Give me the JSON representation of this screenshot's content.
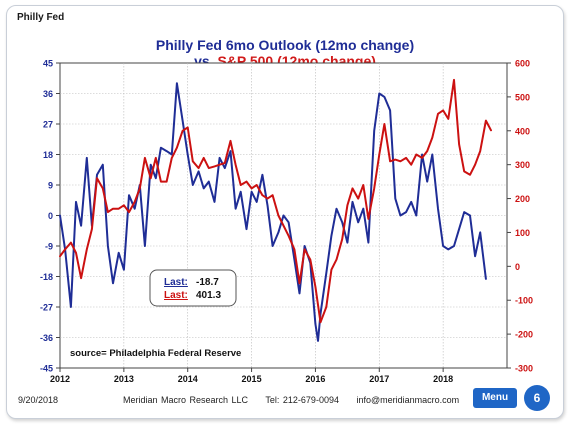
{
  "slide": {
    "tag": "Philly Fed",
    "date": "9/20/2018",
    "footer_company": "Meridian Macro Research LLC",
    "footer_tel": "Tel: 212-679-0094",
    "footer_email": "info@meridianmacro.com",
    "menu_label": "Menu",
    "page_number": "6",
    "accent_color": "#1f66c6"
  },
  "chart_data": {
    "type": "line",
    "title_line1": "Philly Fed 6mo Outlook (12mo change)",
    "title_line2_prefix": "vs.",
    "title_line2_series": "S&P 500 (12mo change)",
    "left_axis": {
      "ylim": [
        -45,
        45
      ],
      "ticks": [
        -45,
        -36,
        -27,
        -18,
        -9,
        0,
        9,
        18,
        27,
        36,
        45
      ],
      "tick_labels": [
        "-45",
        "-36",
        "-27",
        "-18",
        "-9",
        "0",
        "9",
        "18",
        "27",
        "36",
        "45"
      ]
    },
    "right_axis": {
      "ylim": [
        -300,
        600
      ],
      "ticks": [
        -300,
        -200,
        -100,
        0,
        100,
        200,
        300,
        400,
        500,
        600
      ],
      "tick_labels": [
        "-300",
        "-200",
        "-100",
        "0",
        "100",
        "200",
        "300",
        "400",
        "500",
        "600"
      ]
    },
    "x_axis": {
      "xlim": [
        2012,
        2019
      ],
      "ticks": [
        2012,
        2013,
        2014,
        2015,
        2016,
        2017,
        2018
      ],
      "tick_labels": [
        "2012",
        "2013",
        "2014",
        "2015",
        "2016",
        "2017",
        "2018"
      ]
    },
    "grid": true,
    "series": [
      {
        "axis": "left",
        "color": "#1f2d96",
        "points": [
          [
            2012.0,
            0
          ],
          [
            2012.08,
            -10
          ],
          [
            2012.17,
            -27
          ],
          [
            2012.25,
            4
          ],
          [
            2012.33,
            -3
          ],
          [
            2012.42,
            17
          ],
          [
            2012.5,
            -3
          ],
          [
            2012.58,
            12
          ],
          [
            2012.67,
            15
          ],
          [
            2012.75,
            -9
          ],
          [
            2012.83,
            -20
          ],
          [
            2012.92,
            -11
          ],
          [
            2013.0,
            -16
          ],
          [
            2013.08,
            6
          ],
          [
            2013.17,
            2
          ],
          [
            2013.25,
            9
          ],
          [
            2013.33,
            -9
          ],
          [
            2013.42,
            15
          ],
          [
            2013.5,
            11
          ],
          [
            2013.58,
            20
          ],
          [
            2013.67,
            19
          ],
          [
            2013.75,
            18
          ],
          [
            2013.83,
            39
          ],
          [
            2013.92,
            28
          ],
          [
            2014.0,
            18
          ],
          [
            2014.08,
            9
          ],
          [
            2014.17,
            13
          ],
          [
            2014.25,
            8
          ],
          [
            2014.33,
            10
          ],
          [
            2014.42,
            4
          ],
          [
            2014.5,
            17
          ],
          [
            2014.58,
            14
          ],
          [
            2014.67,
            19
          ],
          [
            2014.75,
            2
          ],
          [
            2014.83,
            7
          ],
          [
            2014.92,
            -4
          ],
          [
            2015.0,
            7
          ],
          [
            2015.08,
            4
          ],
          [
            2015.17,
            12
          ],
          [
            2015.25,
            3
          ],
          [
            2015.33,
            -9
          ],
          [
            2015.42,
            -5
          ],
          [
            2015.5,
            0
          ],
          [
            2015.58,
            -2
          ],
          [
            2015.67,
            -13
          ],
          [
            2015.75,
            -23
          ],
          [
            2015.83,
            -9
          ],
          [
            2015.92,
            -14
          ],
          [
            2016.0,
            -32
          ],
          [
            2016.04,
            -37
          ],
          [
            2016.08,
            -29
          ],
          [
            2016.17,
            -17
          ],
          [
            2016.25,
            -6
          ],
          [
            2016.33,
            2
          ],
          [
            2016.42,
            -2
          ],
          [
            2016.5,
            -8
          ],
          [
            2016.58,
            4
          ],
          [
            2016.67,
            -2
          ],
          [
            2016.75,
            2
          ],
          [
            2016.83,
            -8
          ],
          [
            2016.92,
            25
          ],
          [
            2017.0,
            36
          ],
          [
            2017.08,
            35
          ],
          [
            2017.17,
            31
          ],
          [
            2017.25,
            5
          ],
          [
            2017.33,
            0
          ],
          [
            2017.42,
            1
          ],
          [
            2017.5,
            4
          ],
          [
            2017.58,
            0
          ],
          [
            2017.67,
            18
          ],
          [
            2017.75,
            10
          ],
          [
            2017.83,
            18
          ],
          [
            2017.92,
            2
          ],
          [
            2018.0,
            -9
          ],
          [
            2018.08,
            -10
          ],
          [
            2018.17,
            -9
          ],
          [
            2018.25,
            -4
          ],
          [
            2018.33,
            1
          ],
          [
            2018.42,
            0
          ],
          [
            2018.5,
            -12
          ],
          [
            2018.58,
            -5
          ],
          [
            2018.67,
            -18.7
          ]
        ]
      },
      {
        "axis": "right",
        "color": "#cc1111",
        "points": [
          [
            2012.0,
            30
          ],
          [
            2012.08,
            50
          ],
          [
            2012.17,
            70
          ],
          [
            2012.25,
            40
          ],
          [
            2012.33,
            -35
          ],
          [
            2012.42,
            50
          ],
          [
            2012.5,
            110
          ],
          [
            2012.58,
            260
          ],
          [
            2012.67,
            230
          ],
          [
            2012.75,
            160
          ],
          [
            2012.83,
            170
          ],
          [
            2012.92,
            170
          ],
          [
            2013.0,
            180
          ],
          [
            2013.08,
            160
          ],
          [
            2013.17,
            190
          ],
          [
            2013.25,
            230
          ],
          [
            2013.33,
            320
          ],
          [
            2013.42,
            260
          ],
          [
            2013.5,
            320
          ],
          [
            2013.58,
            250
          ],
          [
            2013.67,
            250
          ],
          [
            2013.75,
            320
          ],
          [
            2013.83,
            350
          ],
          [
            2013.92,
            400
          ],
          [
            2014.0,
            410
          ],
          [
            2014.08,
            310
          ],
          [
            2014.17,
            290
          ],
          [
            2014.25,
            320
          ],
          [
            2014.33,
            290
          ],
          [
            2014.42,
            295
          ],
          [
            2014.5,
            300
          ],
          [
            2014.58,
            305
          ],
          [
            2014.67,
            370
          ],
          [
            2014.75,
            300
          ],
          [
            2014.83,
            240
          ],
          [
            2014.92,
            250
          ],
          [
            2015.0,
            230
          ],
          [
            2015.08,
            240
          ],
          [
            2015.17,
            210
          ],
          [
            2015.25,
            200
          ],
          [
            2015.33,
            210
          ],
          [
            2015.42,
            150
          ],
          [
            2015.58,
            90
          ],
          [
            2015.67,
            50
          ],
          [
            2015.75,
            -50
          ],
          [
            2015.83,
            50
          ],
          [
            2015.92,
            20
          ],
          [
            2016.0,
            -60
          ],
          [
            2016.08,
            -165
          ],
          [
            2016.17,
            -120
          ],
          [
            2016.25,
            -10
          ],
          [
            2016.33,
            20
          ],
          [
            2016.42,
            80
          ],
          [
            2016.5,
            180
          ],
          [
            2016.58,
            230
          ],
          [
            2016.67,
            200
          ],
          [
            2016.75,
            240
          ],
          [
            2016.83,
            140
          ],
          [
            2016.92,
            230
          ],
          [
            2017.0,
            330
          ],
          [
            2017.08,
            420
          ],
          [
            2017.17,
            310
          ],
          [
            2017.25,
            315
          ],
          [
            2017.33,
            310
          ],
          [
            2017.42,
            320
          ],
          [
            2017.5,
            300
          ],
          [
            2017.58,
            330
          ],
          [
            2017.67,
            320
          ],
          [
            2017.75,
            340
          ],
          [
            2017.83,
            380
          ],
          [
            2017.92,
            450
          ],
          [
            2018.0,
            460
          ],
          [
            2018.08,
            435
          ],
          [
            2018.17,
            550
          ],
          [
            2018.25,
            360
          ],
          [
            2018.33,
            280
          ],
          [
            2018.42,
            270
          ],
          [
            2018.5,
            300
          ],
          [
            2018.58,
            340
          ],
          [
            2018.67,
            430
          ],
          [
            2018.75,
            401.3
          ]
        ]
      }
    ],
    "last_box": {
      "label": "Last:",
      "blue_value": "-18.7",
      "red_value": "401.3"
    },
    "source_note": "source= Philadelphia Federal Reserve"
  }
}
